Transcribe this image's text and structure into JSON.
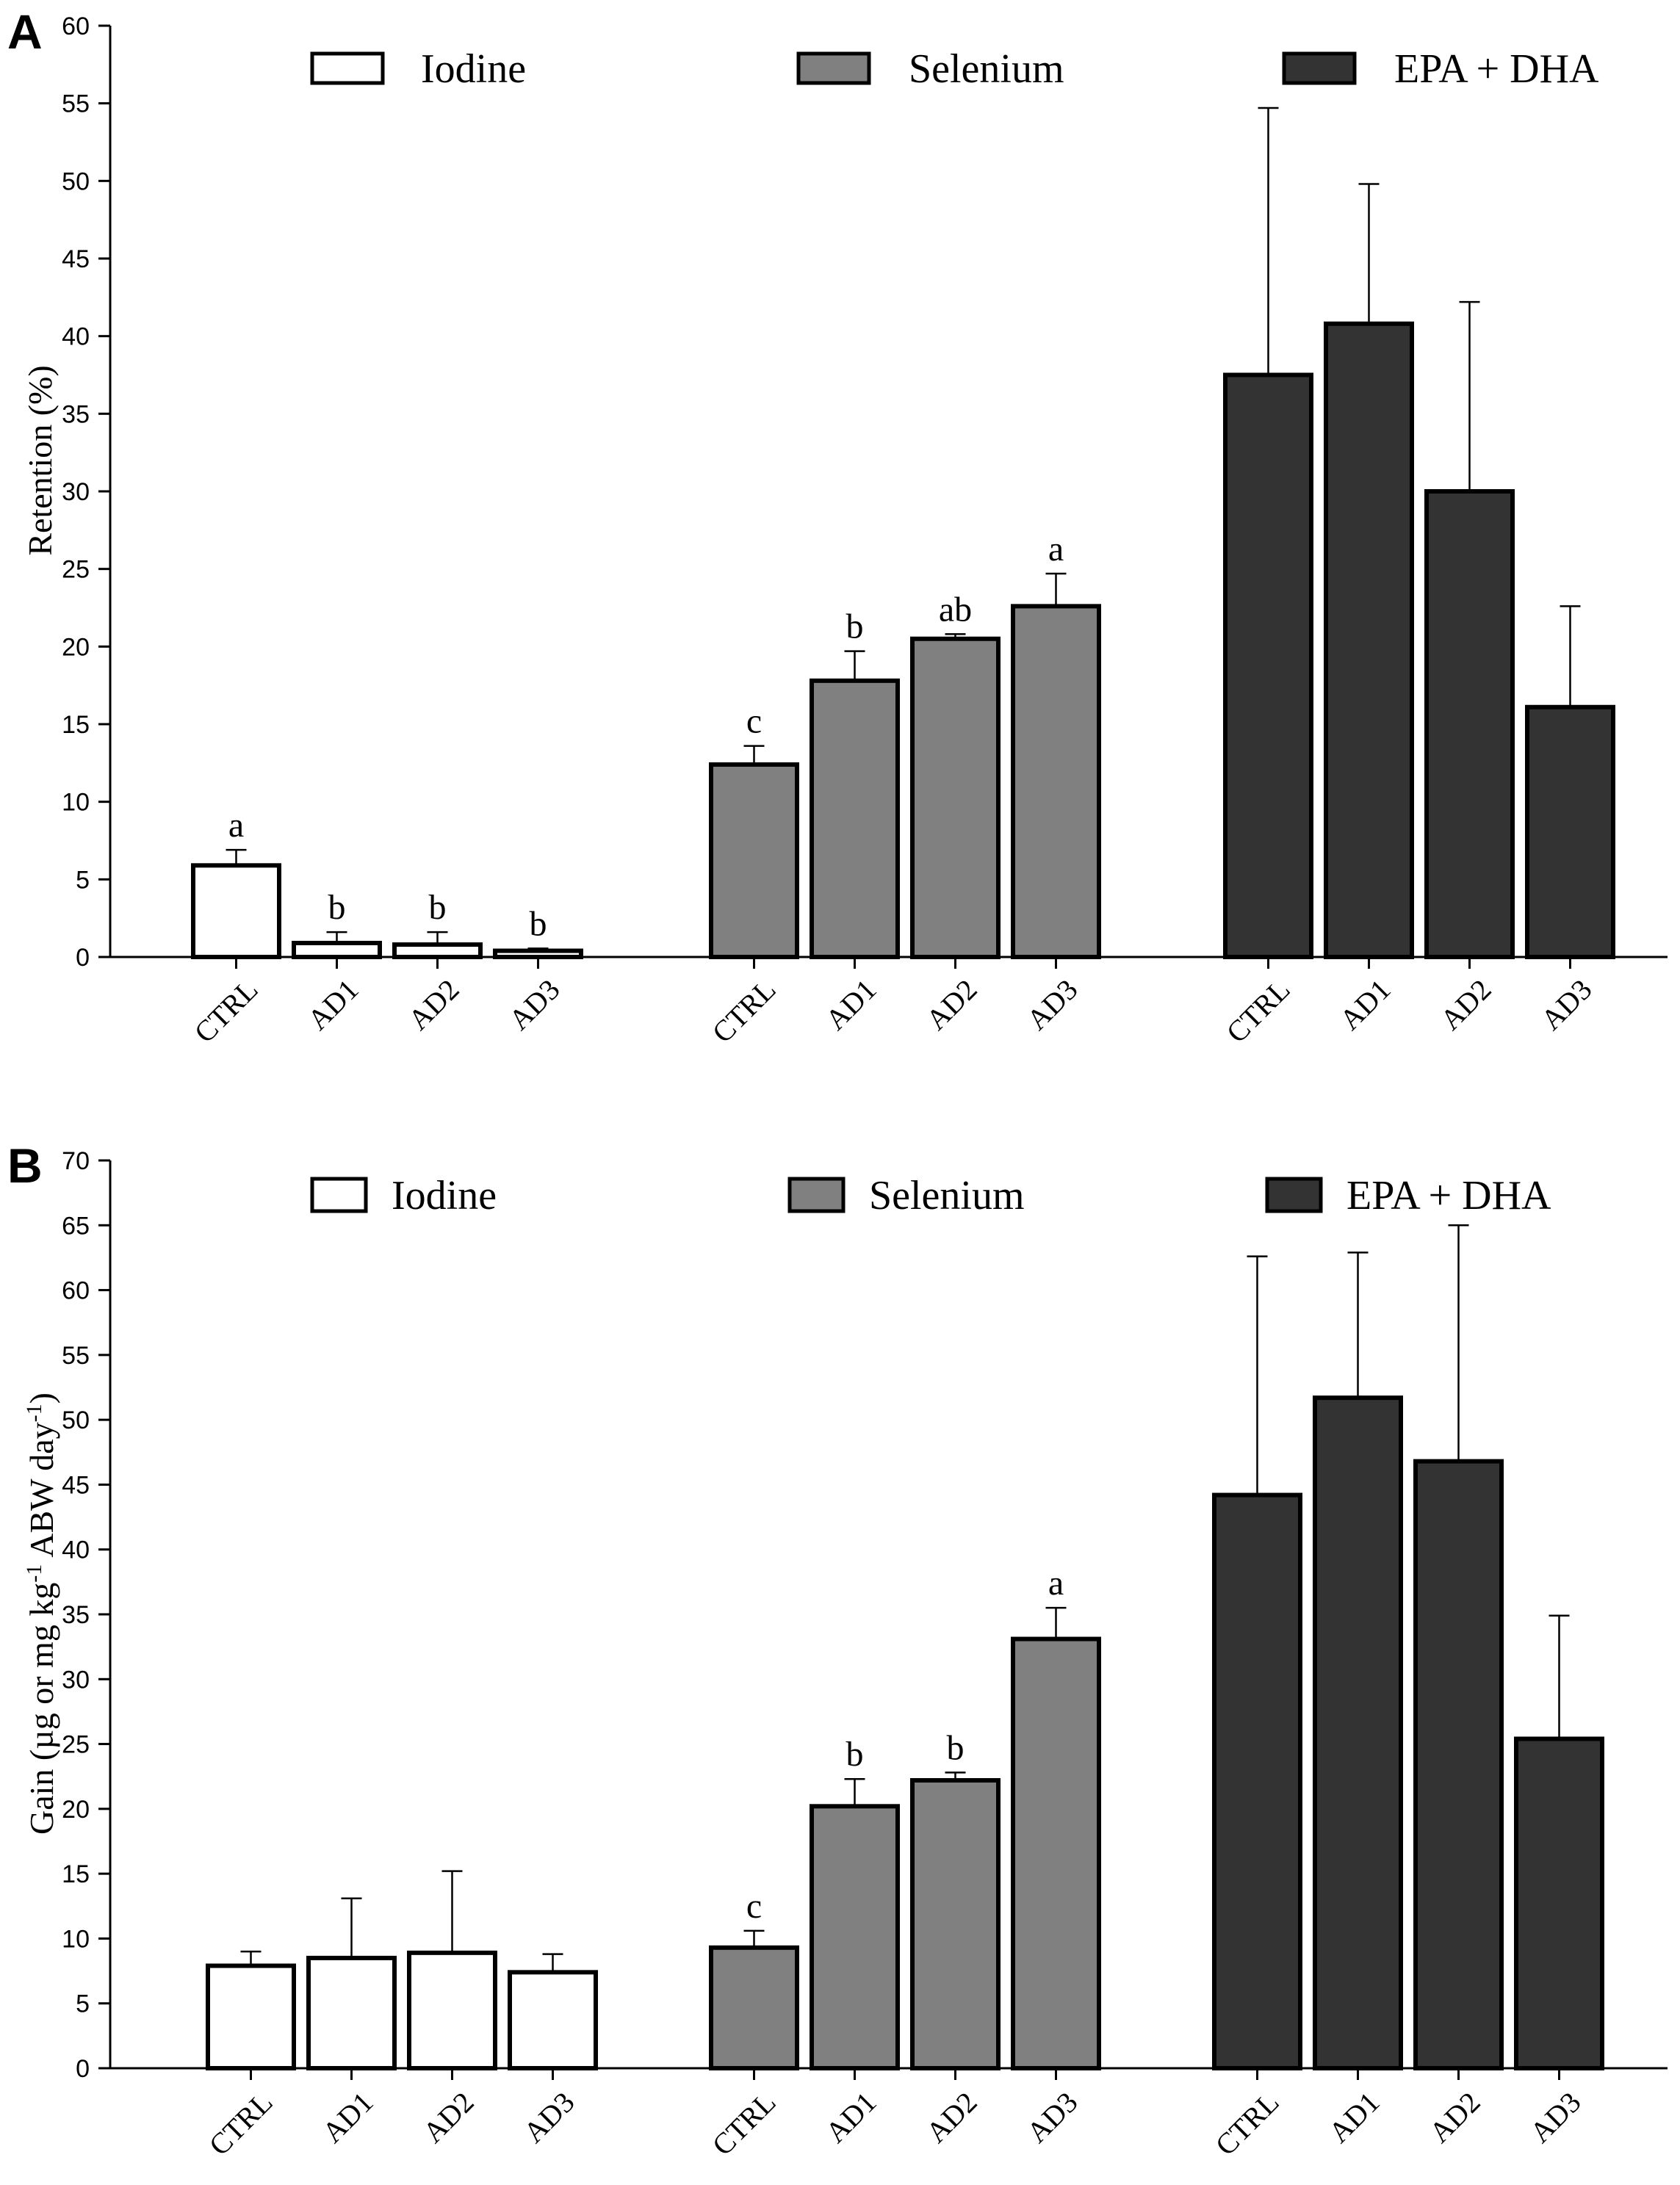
{
  "panels": [
    {
      "letter": "A",
      "ylabel": "Retention (%)",
      "chart_data": {
        "type": "bar",
        "title": "",
        "xlabel": "",
        "ylabel": "Retention (%)",
        "ylim": [
          0,
          60
        ],
        "yticks": [
          0,
          5,
          10,
          15,
          20,
          25,
          30,
          35,
          40,
          45,
          50,
          55,
          60
        ],
        "legend": [
          {
            "name": "Iodine",
            "color": "#ffffff"
          },
          {
            "name": "Selenium",
            "color": "#808080"
          },
          {
            "name": "EPA + DHA",
            "color": "#333333"
          }
        ],
        "groups": [
          {
            "name": "Iodine",
            "color": "#ffffff",
            "categories": [
              "CTRL",
              "AD1",
              "AD2",
              "AD3"
            ],
            "values": [
              5.9,
              0.9,
              0.8,
              0.4
            ],
            "errors": [
              1.0,
              0.7,
              0.8,
              0.15
            ],
            "labels": [
              "a",
              "b",
              "b",
              "b"
            ]
          },
          {
            "name": "Selenium",
            "color": "#808080",
            "categories": [
              "CTRL",
              "AD1",
              "AD2",
              "AD3"
            ],
            "values": [
              12.4,
              17.8,
              20.5,
              22.6
            ],
            "errors": [
              1.2,
              1.9,
              0.3,
              2.1
            ],
            "labels": [
              "c",
              "b",
              "ab",
              "a"
            ]
          },
          {
            "name": "EPA + DHA",
            "color": "#333333",
            "categories": [
              "CTRL",
              "AD1",
              "AD2",
              "AD3"
            ],
            "values": [
              37.5,
              40.8,
              30.0,
              16.1
            ],
            "errors": [
              17.2,
              9.0,
              12.2,
              6.5
            ],
            "labels": [
              "",
              "",
              "",
              ""
            ]
          }
        ]
      }
    },
    {
      "letter": "B",
      "ylabel_main": "Gain (µg or mg kg",
      "ylabel_sup1": "-1",
      "ylabel_mid": " ABW day",
      "ylabel_sup2": "-1",
      "ylabel_end": ")",
      "chart_data": {
        "type": "bar",
        "title": "",
        "xlabel": "",
        "ylabel": "Gain (µg or mg kg-1 ABW day-1)",
        "ylim": [
          0,
          70
        ],
        "yticks": [
          0,
          5,
          10,
          15,
          20,
          25,
          30,
          35,
          40,
          45,
          50,
          55,
          60,
          65,
          70
        ],
        "legend": [
          {
            "name": "Iodine",
            "color": "#ffffff"
          },
          {
            "name": "Selenium",
            "color": "#808080"
          },
          {
            "name": "EPA + DHA",
            "color": "#333333"
          }
        ],
        "groups": [
          {
            "name": "Iodine",
            "color": "#ffffff",
            "categories": [
              "CTRL",
              "AD1",
              "AD2",
              "AD3"
            ],
            "values": [
              7.9,
              8.5,
              8.9,
              7.4
            ],
            "errors": [
              1.1,
              4.6,
              6.3,
              1.4
            ],
            "labels": [
              "",
              "",
              "",
              ""
            ]
          },
          {
            "name": "Selenium",
            "color": "#808080",
            "categories": [
              "CTRL",
              "AD1",
              "AD2",
              "AD3"
            ],
            "values": [
              9.3,
              20.2,
              22.2,
              33.1
            ],
            "errors": [
              1.3,
              2.1,
              0.6,
              2.4
            ],
            "labels": [
              "c",
              "b",
              "b",
              "a"
            ]
          },
          {
            "name": "EPA + DHA",
            "color": "#333333",
            "categories": [
              "CTRL",
              "AD1",
              "AD2",
              "AD3"
            ],
            "values": [
              44.2,
              51.7,
              46.8,
              25.4
            ],
            "errors": [
              18.4,
              11.2,
              18.2,
              9.5
            ],
            "labels": [
              "",
              "",
              "",
              ""
            ]
          }
        ]
      }
    }
  ]
}
